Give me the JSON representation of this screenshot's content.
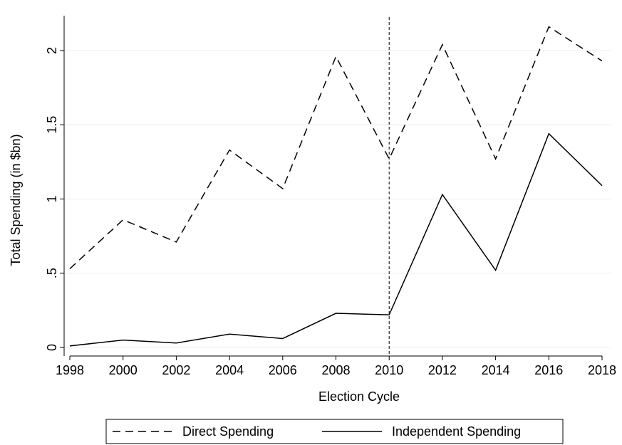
{
  "chart_data": {
    "type": "line",
    "title": "",
    "xlabel": "Election Cycle",
    "ylabel": "Total Spending (in $bn)",
    "x": [
      1998,
      2000,
      2002,
      2004,
      2006,
      2008,
      2010,
      2012,
      2014,
      2016,
      2018
    ],
    "x_ticks": [
      "1998",
      "2000",
      "2002",
      "2004",
      "2006",
      "2008",
      "2010",
      "2012",
      "2014",
      "2016",
      "2018"
    ],
    "y_ticks": [
      "0",
      ".5",
      "1",
      "1.5",
      "2"
    ],
    "y_tick_values": [
      0,
      0.5,
      1,
      1.5,
      2
    ],
    "xlim": [
      1998,
      2018
    ],
    "ylim": [
      0,
      2.2
    ],
    "grid": true,
    "vertical_reference_line": 2010,
    "legend_position": "bottom",
    "series": [
      {
        "name": "Direct Spending",
        "style": "dashed",
        "color": "#000000",
        "values": [
          0.53,
          0.86,
          0.71,
          1.33,
          1.07,
          1.96,
          1.27,
          2.04,
          1.27,
          2.16,
          1.93
        ]
      },
      {
        "name": "Independent Spending",
        "style": "solid",
        "color": "#000000",
        "values": [
          0.01,
          0.05,
          0.03,
          0.09,
          0.06,
          0.23,
          0.22,
          1.03,
          0.52,
          1.44,
          1.09
        ]
      }
    ]
  }
}
